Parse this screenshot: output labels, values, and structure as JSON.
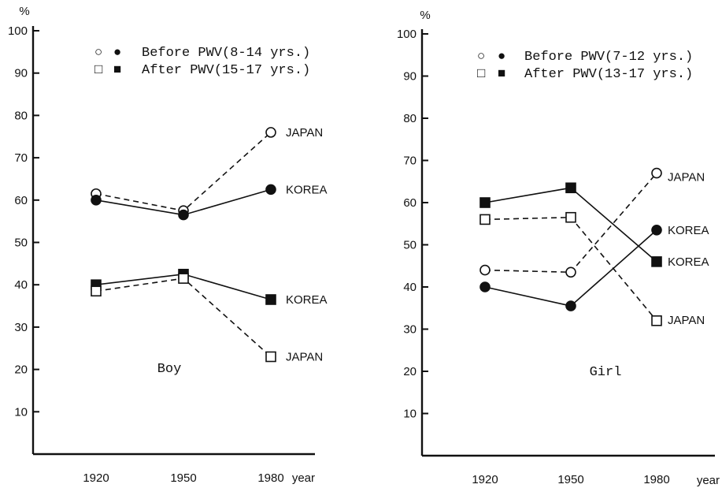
{
  "chart_data": [
    {
      "type": "line",
      "title": "Boy",
      "ylabel": "%",
      "xlabel": "year",
      "x": [
        "1920",
        "1950",
        "1980"
      ],
      "ylim": [
        0,
        100
      ],
      "yticks": [
        10,
        20,
        30,
        40,
        50,
        60,
        70,
        80,
        90,
        100
      ],
      "grid": false,
      "legend_position": "top-right",
      "legend": [
        {
          "open": "○",
          "filled": "●",
          "text": "Before PWV(8-14 yrs.)"
        },
        {
          "open": "□",
          "filled": "■",
          "text": "After PWV(15-17 yrs.)"
        }
      ],
      "series": [
        {
          "period": "before",
          "country": "JAPAN",
          "marker": "circle-open",
          "line": "dashed",
          "values": [
            61.5,
            57.5,
            76
          ]
        },
        {
          "period": "before",
          "country": "KOREA",
          "marker": "circle-filled",
          "line": "solid",
          "values": [
            60,
            56.5,
            62.5
          ]
        },
        {
          "period": "after",
          "country": "KOREA",
          "marker": "square-filled",
          "line": "solid",
          "values": [
            40,
            42.5,
            36.5
          ]
        },
        {
          "period": "after",
          "country": "JAPAN",
          "marker": "square-open",
          "line": "dashed",
          "values": [
            38.5,
            41.5,
            23
          ]
        }
      ]
    },
    {
      "type": "line",
      "title": "Girl",
      "ylabel": "%",
      "xlabel": "year",
      "x": [
        "1920",
        "1950",
        "1980"
      ],
      "ylim": [
        0,
        100
      ],
      "yticks": [
        10,
        20,
        30,
        40,
        50,
        60,
        70,
        80,
        90,
        100
      ],
      "grid": false,
      "legend_position": "top-right",
      "legend": [
        {
          "open": "○",
          "filled": "●",
          "text": "Before PWV(7-12 yrs.)"
        },
        {
          "open": "□",
          "filled": "■",
          "text": "After PWV(13-17 yrs.)"
        }
      ],
      "series": [
        {
          "period": "before",
          "country": "JAPAN",
          "marker": "circle-open",
          "line": "dashed",
          "values": [
            44,
            43.5,
            67
          ]
        },
        {
          "period": "before",
          "country": "KOREA",
          "marker": "circle-filled",
          "line": "solid",
          "values": [
            40,
            35.5,
            53.5
          ]
        },
        {
          "period": "after",
          "country": "KOREA",
          "marker": "square-filled",
          "line": "solid",
          "values": [
            60,
            63.5,
            46
          ]
        },
        {
          "period": "after",
          "country": "JAPAN",
          "marker": "square-open",
          "line": "dashed",
          "values": [
            56,
            56.5,
            32
          ]
        }
      ]
    }
  ]
}
